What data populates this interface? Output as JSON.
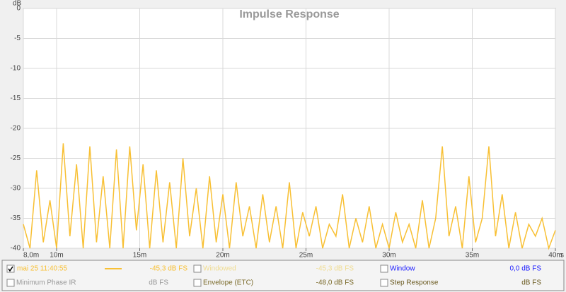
{
  "chart_data": {
    "type": "line",
    "title": "Impulse Response",
    "x_label": "s",
    "y_label": "dB",
    "x": [
      8,
      8.4,
      8.8,
      9.2,
      9.6,
      10,
      10.4,
      10.8,
      11.2,
      11.6,
      12,
      12.4,
      12.8,
      13.2,
      13.6,
      14,
      14.4,
      14.8,
      15.2,
      15.6,
      16,
      16.4,
      16.8,
      17.2,
      17.6,
      18,
      18.4,
      18.8,
      19.2,
      19.6,
      20,
      20.4,
      20.8,
      21.2,
      21.6,
      22,
      22.4,
      22.8,
      23.2,
      23.6,
      24,
      24.4,
      24.8,
      25.2,
      25.6,
      26,
      26.4,
      26.8,
      27.2,
      27.6,
      28,
      28.4,
      28.8,
      29.2,
      29.6,
      30,
      30.4,
      30.8,
      31.2,
      31.6,
      32,
      32.4,
      32.8,
      33.2,
      33.6,
      34,
      34.4,
      34.8,
      35.2,
      35.6,
      36,
      36.4,
      36.8,
      37.2,
      37.6,
      38,
      38.4,
      38.8,
      39.2,
      39.6,
      40
    ],
    "series": [
      {
        "name": "mai 25 11:40:55",
        "color": "#f8c034",
        "values": [
          -36,
          -40,
          -27,
          -39,
          -32,
          -40,
          -22.5,
          -38,
          -26,
          -40,
          -23,
          -39,
          -28,
          -40,
          -23.5,
          -40,
          -23,
          -37,
          -26,
          -40,
          -27,
          -39,
          -29,
          -40,
          -25,
          -38,
          -30,
          -40,
          -28,
          -39,
          -31,
          -40,
          -29,
          -38,
          -33,
          -40,
          -31,
          -39,
          -33,
          -40,
          -29,
          -40,
          -34,
          -38,
          -33,
          -40,
          -36,
          -38,
          -31,
          -40,
          -35,
          -39,
          -33,
          -40,
          -36,
          -40,
          -34,
          -39,
          -36,
          -40,
          -32,
          -40,
          -35,
          -23,
          -38,
          -33,
          -40,
          -28,
          -39,
          -35,
          -23,
          -38,
          -31,
          -40,
          -34,
          -40,
          -36,
          -38,
          -35,
          -40,
          -37
        ]
      }
    ],
    "xlim": [
      8,
      40
    ],
    "ylim": [
      -40,
      0
    ],
    "xticks": [
      {
        "value": 8,
        "label": "8,0m"
      },
      {
        "value": 10,
        "label": "10m"
      },
      {
        "value": 15,
        "label": "15m"
      },
      {
        "value": 20,
        "label": "20m"
      },
      {
        "value": 25,
        "label": "25m"
      },
      {
        "value": 30,
        "label": "30m"
      },
      {
        "value": 35,
        "label": "35m"
      },
      {
        "value": 40,
        "label": "40m"
      }
    ],
    "yticks": [
      0,
      -5,
      -10,
      -15,
      -20,
      -25,
      -30,
      -35,
      -40
    ],
    "grid": true
  },
  "panel": {
    "series_value": "-45,3 dB FS",
    "items": [
      {
        "label": "Windowed",
        "value": "-45,3 dB FS",
        "color": "#f0dc90",
        "checked": false
      },
      {
        "label": "Window",
        "value": "0,0 dB FS",
        "color": "#1a1aff",
        "checked": false
      },
      {
        "label": "Minimum Phase IR",
        "value": "dB FS",
        "color": "#999999",
        "checked": false
      },
      {
        "label": "Envelope (ETC)",
        "value": "-48,0 dB FS",
        "color": "#7a6a2a",
        "checked": false
      },
      {
        "label": "Step Response",
        "value": "dB FS",
        "color": "#6a5a20",
        "checked": false
      }
    ]
  }
}
